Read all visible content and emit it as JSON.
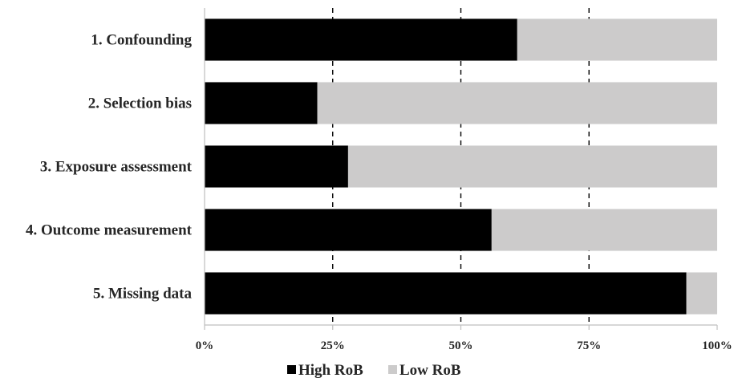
{
  "chart_data": {
    "type": "bar",
    "orientation": "horizontal",
    "stacked": true,
    "percent": true,
    "categories": [
      "1. Confounding",
      "2. Selection bias",
      "3. Exposure assessment",
      "4. Outcome measurement",
      "5. Missing data"
    ],
    "series": [
      {
        "name": "High RoB",
        "values": [
          61,
          22,
          28,
          56,
          94
        ],
        "color": "#000000"
      },
      {
        "name": "Low RoB",
        "values": [
          39,
          78,
          72,
          44,
          6
        ],
        "color": "#cccbcb"
      }
    ],
    "xlim": [
      0,
      100
    ],
    "xticks": [
      0,
      25,
      50,
      75,
      100
    ],
    "xtick_labels": [
      "0%",
      "25%",
      "50%",
      "75%",
      "100%"
    ],
    "grid": "vertical dashed",
    "legend": "bottom",
    "title": "",
    "xlabel": "",
    "ylabel": ""
  }
}
